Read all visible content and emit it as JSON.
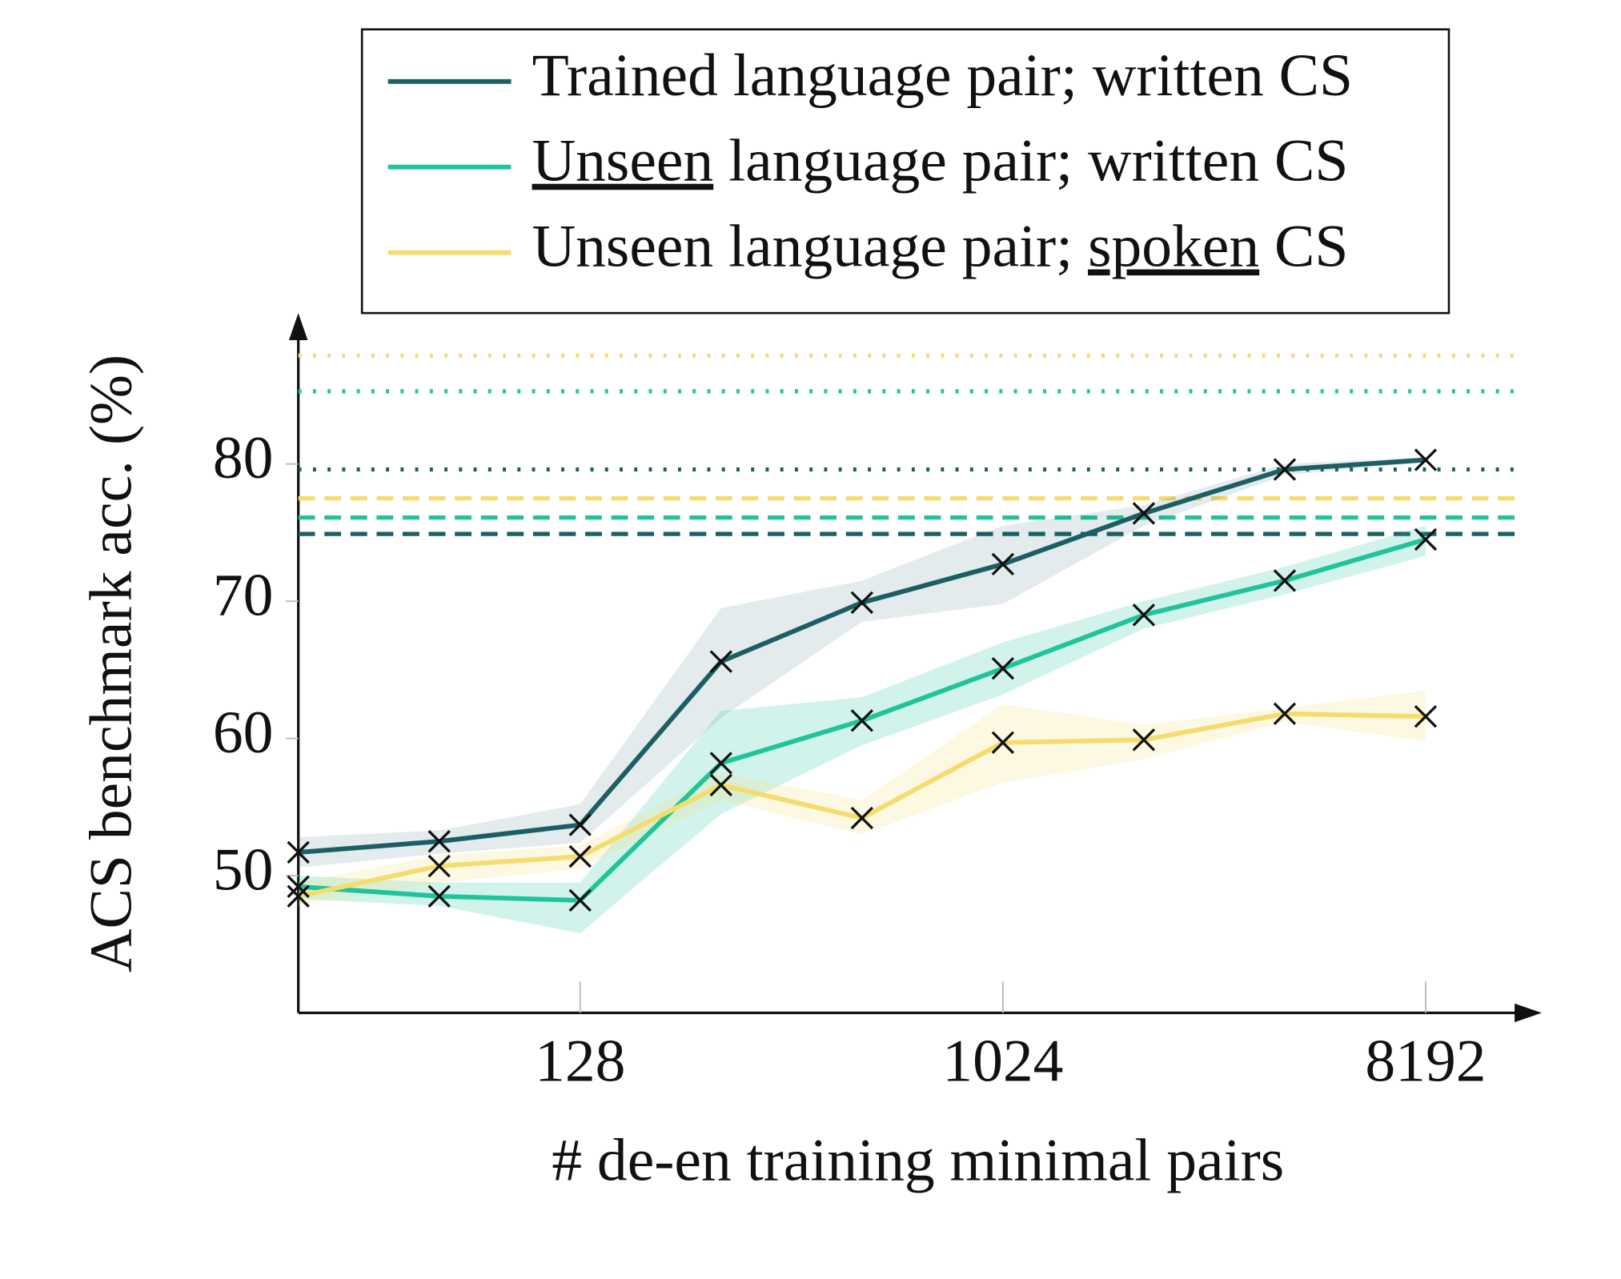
{
  "chart_data": {
    "type": "line",
    "x_label": "# de-en training minimal pairs",
    "y_label": "ACS benchmark acc. (%)",
    "x": [
      32,
      64,
      128,
      256,
      512,
      1024,
      2048,
      4096,
      8192
    ],
    "xscale": "log2",
    "xlim": [
      32,
      14500
    ],
    "xticks": [
      128,
      1024,
      8192
    ],
    "ylim": [
      40,
      91
    ],
    "yticks": [
      50,
      60,
      70,
      80
    ],
    "marker": "x",
    "legend": "top",
    "series": [
      {
        "name": "Trained language pair; written CS",
        "underline": null,
        "color": "#1b5e63",
        "values": [
          51.7,
          52.5,
          53.7,
          65.6,
          69.9,
          72.7,
          76.4,
          79.6,
          80.3
        ],
        "lower": [
          50.6,
          51.6,
          52.4,
          61.5,
          68.5,
          69.8,
          75.5,
          79.2,
          80.1
        ],
        "upper": [
          52.8,
          53.3,
          55.2,
          69.5,
          71.5,
          75.5,
          77.0,
          80.0,
          80.5
        ]
      },
      {
        "name": "Unseen language pair; written CS",
        "underline": "Unseen",
        "color": "#1fc49a",
        "values": [
          49.2,
          48.5,
          48.2,
          58.2,
          61.3,
          65.1,
          69.0,
          71.5,
          74.5
        ],
        "lower": [
          48.3,
          47.8,
          45.8,
          54.5,
          59.5,
          63.2,
          68.0,
          70.5,
          73.3
        ],
        "upper": [
          50.0,
          49.5,
          49.5,
          62.0,
          63.0,
          67.0,
          70.0,
          72.5,
          75.5
        ]
      },
      {
        "name": "Unseen language pair; spoken CS",
        "underline": "spoken",
        "color": "#f5dc6e",
        "values": [
          48.5,
          50.7,
          51.4,
          56.6,
          54.2,
          59.7,
          59.9,
          61.8,
          61.6
        ],
        "lower": [
          47.8,
          49.5,
          50.5,
          55.5,
          53.0,
          56.8,
          58.5,
          61.2,
          59.8
        ],
        "upper": [
          49.5,
          51.5,
          52.2,
          57.5,
          55.5,
          62.5,
          61.0,
          62.2,
          63.5
        ]
      }
    ],
    "reference_lines": [
      {
        "value": 87.9,
        "color": "#f5dc6e",
        "style": "dotted"
      },
      {
        "value": 85.3,
        "color": "#1fc49a",
        "style": "dotted"
      },
      {
        "value": 79.6,
        "color": "#1b5e63",
        "style": "dotted"
      },
      {
        "value": 77.5,
        "color": "#f5dc6e",
        "style": "dashed"
      },
      {
        "value": 76.1,
        "color": "#1fc49a",
        "style": "dashed"
      },
      {
        "value": 74.9,
        "color": "#1b5e63",
        "style": "dashed"
      }
    ]
  }
}
